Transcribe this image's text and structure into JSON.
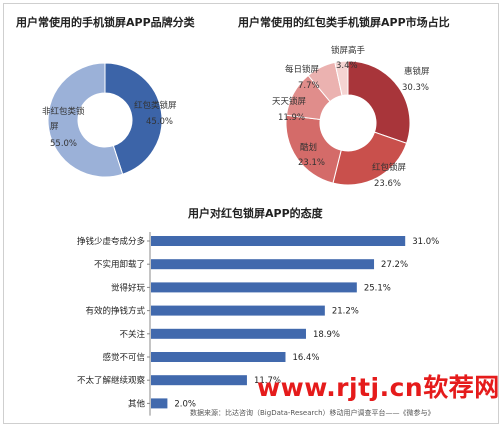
{
  "chart_data": [
    {
      "type": "pie",
      "title": "用户常使用的手机锁屏APP品牌分类",
      "labels": [
        "红包类锁屏",
        "非红包类锁屏"
      ],
      "values": [
        45.0,
        55.0
      ],
      "value_labels": [
        "45.0%",
        "55.0%"
      ],
      "colors": [
        "#3c64a8",
        "#9bb1d8"
      ]
    },
    {
      "type": "pie",
      "title": "用户常使用的红包类手机锁屏APP市场占比",
      "labels": [
        "惠锁屏",
        "红包锁屏",
        "酷划",
        "天天锁屏",
        "每日锁屏",
        "锁屏高手"
      ],
      "values": [
        30.3,
        23.6,
        23.1,
        11.9,
        7.7,
        3.4
      ],
      "value_labels": [
        "30.3%",
        "23.6%",
        "23.1%",
        "11.9%",
        "7.7%",
        "3.4%"
      ],
      "colors": [
        "#a8353a",
        "#c9504c",
        "#d46b69",
        "#e08d8b",
        "#ebb2b0",
        "#f5d4d2"
      ]
    },
    {
      "type": "bar",
      "orientation": "horizontal",
      "title": "用户对红包锁屏APP的态度",
      "categories": [
        "挣钱少虚夸成分多",
        "不实用卸载了",
        "觉得好玩",
        "有效的挣钱方式",
        "不关注",
        "感觉不可信",
        "不太了解继续观察",
        "其他"
      ],
      "values": [
        31.0,
        27.2,
        25.1,
        21.2,
        18.9,
        16.4,
        11.7,
        2.0
      ],
      "value_labels": [
        "31.0%",
        "27.2%",
        "25.1%",
        "21.2%",
        "18.9%",
        "16.4%",
        "11.7%",
        "2.0%"
      ],
      "xlim": [
        0,
        35
      ],
      "color": "#4169ad"
    }
  ],
  "watermark": "www.rjtj.cn软荐网",
  "source": "数据来源：比达咨询（BigData-Research）移动用户调查平台——《微参与》"
}
